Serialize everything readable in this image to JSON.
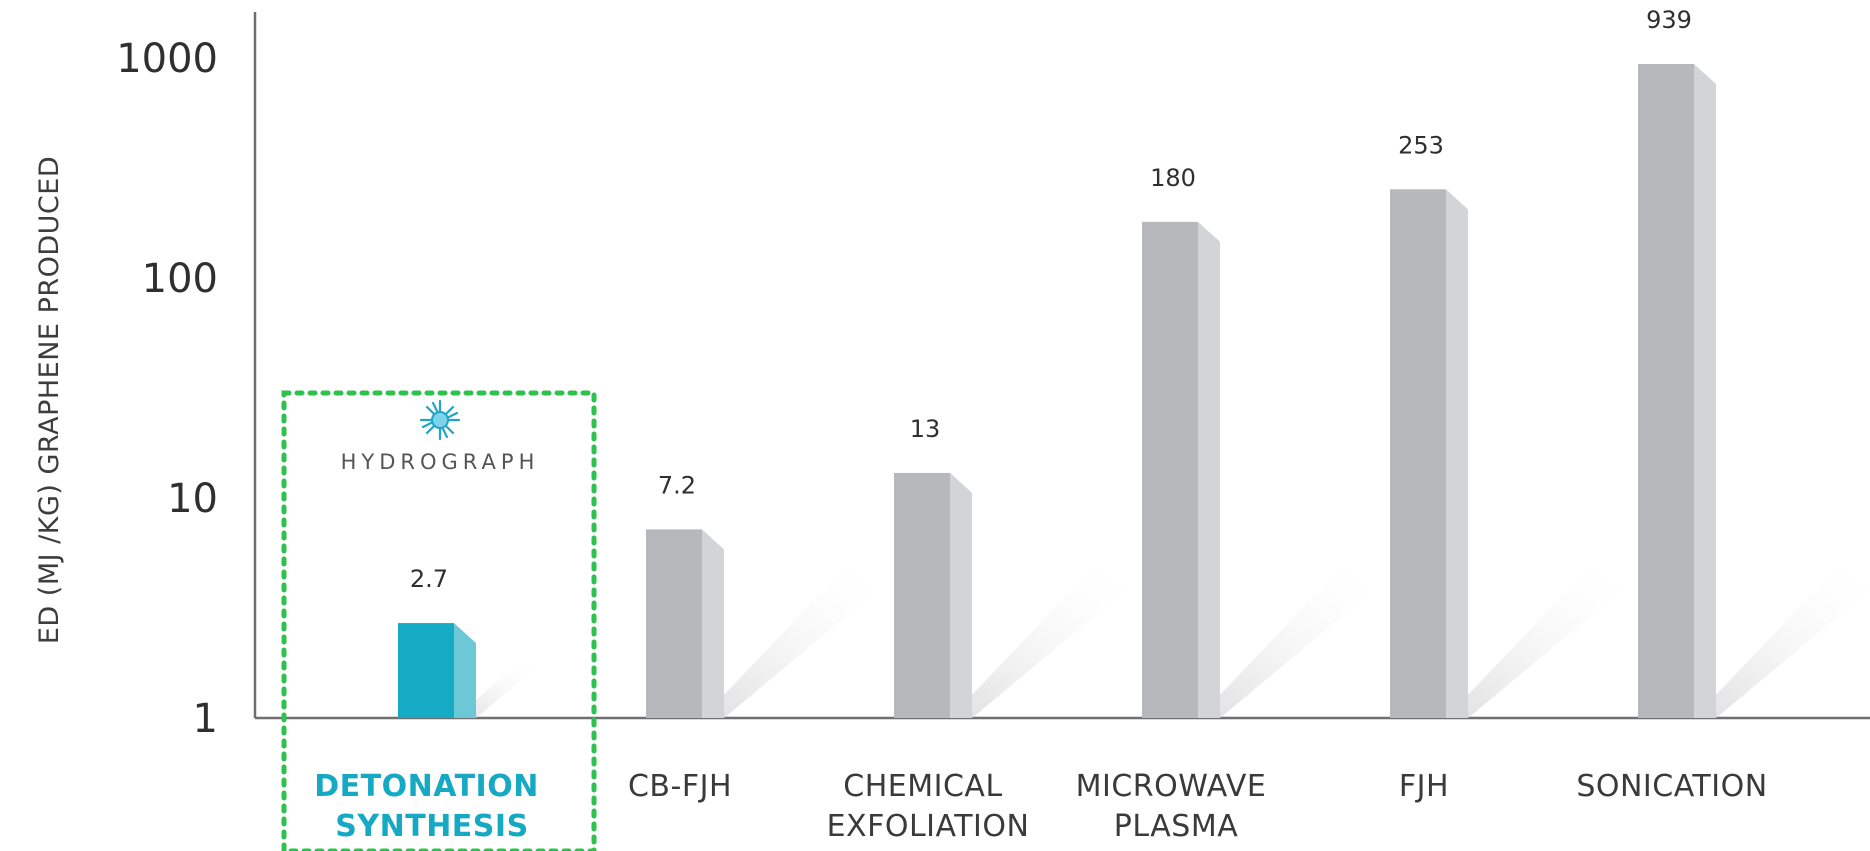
{
  "chart_data": {
    "type": "bar",
    "title": "",
    "xlabel": "",
    "ylabel": "ED (MJ /KG) GRAPHENE PRODUCED",
    "yscale": "log",
    "ylim": [
      1,
      1300
    ],
    "yticks": [
      1,
      10,
      100,
      1000
    ],
    "ytick_labels": [
      "1",
      "10",
      "100",
      "1000"
    ],
    "grid": false,
    "categories": [
      [
        "DETONATION",
        "SYNTHESIS"
      ],
      [
        "CB-FJH"
      ],
      [
        "CHEMICAL",
        "EXFOLIATION"
      ],
      [
        "MICROWAVE",
        "PLASMA"
      ],
      [
        "FJH"
      ],
      [
        "SONICATION"
      ]
    ],
    "values": [
      2.7,
      7.2,
      13,
      180,
      253,
      939
    ],
    "value_labels": [
      "2.7",
      "7.2",
      "13",
      "180",
      "253",
      "939"
    ],
    "highlight_index": 0,
    "colors": {
      "highlight_front": "#16abc4",
      "highlight_side": "#6cc7d6",
      "bar_front": "#b7b8bb",
      "bar_side": "#d3d4d6",
      "highlight_box": "#2dc24d",
      "highlight_text": "#16a9c4",
      "logo": "#1ea6c8"
    },
    "annotations": {
      "logo_text": "HYDROGRAPH",
      "logo_icon": "starburst-logo-icon"
    }
  }
}
